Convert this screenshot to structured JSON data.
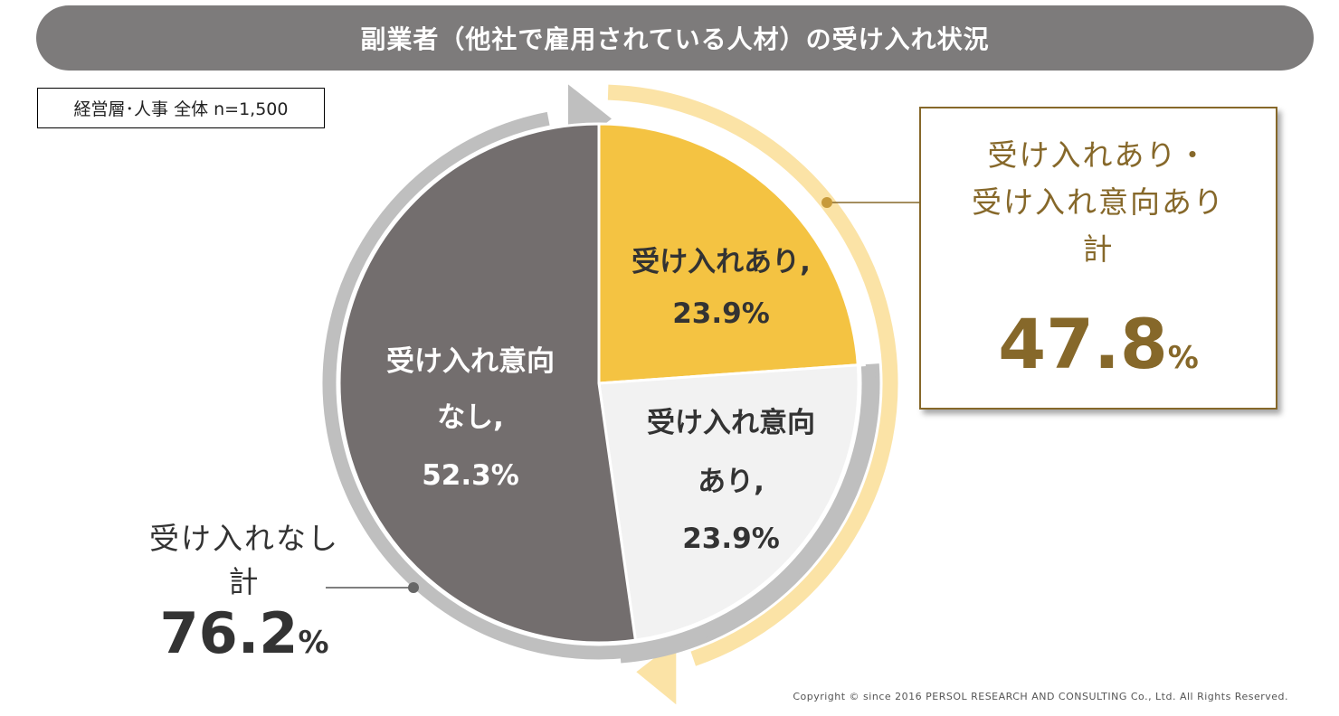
{
  "title": "副業者（他社で雇用されている人材）の受け入れ状況",
  "sample_note": "経営層･人事 全体 n=1,500",
  "chart_data": {
    "type": "pie",
    "slices": [
      {
        "label_line1": "受け入れあり,",
        "label_line2": "",
        "value_text": "23.9%",
        "value": 23.9,
        "color": "#f4c342",
        "text_color": "#333333"
      },
      {
        "label_line1": "受け入れ意向",
        "label_line2": "あり,",
        "value_text": "23.9%",
        "value": 23.9,
        "color": "#f2f2f2",
        "text_color": "#333333"
      },
      {
        "label_line1": "受け入れ意向",
        "label_line2": "なし,",
        "value_text": "52.3%",
        "value": 52.3,
        "color": "#736e6e",
        "text_color": "#ffffff"
      }
    ],
    "groups": [
      {
        "label": "受け入れあり・受け入れ意向あり計",
        "value": 47.8,
        "value_text": "47.8",
        "unit": "%",
        "color": "#fbe3a6"
      },
      {
        "label": "受け入れなし計",
        "value": 76.2,
        "value_text": "76.2",
        "unit": "%",
        "color": "#bfbfbf"
      }
    ]
  },
  "callout": {
    "line1": "受け入れあり・",
    "line2": "受け入れ意向あり",
    "line3": "計",
    "value": "47.8",
    "unit": "%"
  },
  "left_callout": {
    "line1": "受け入れなし",
    "line2": "計",
    "value": "76.2",
    "unit": "%"
  },
  "copyright": "Copyright © since 2016 PERSOL RESEARCH AND CONSULTING Co., Ltd. All Rights Reserved."
}
